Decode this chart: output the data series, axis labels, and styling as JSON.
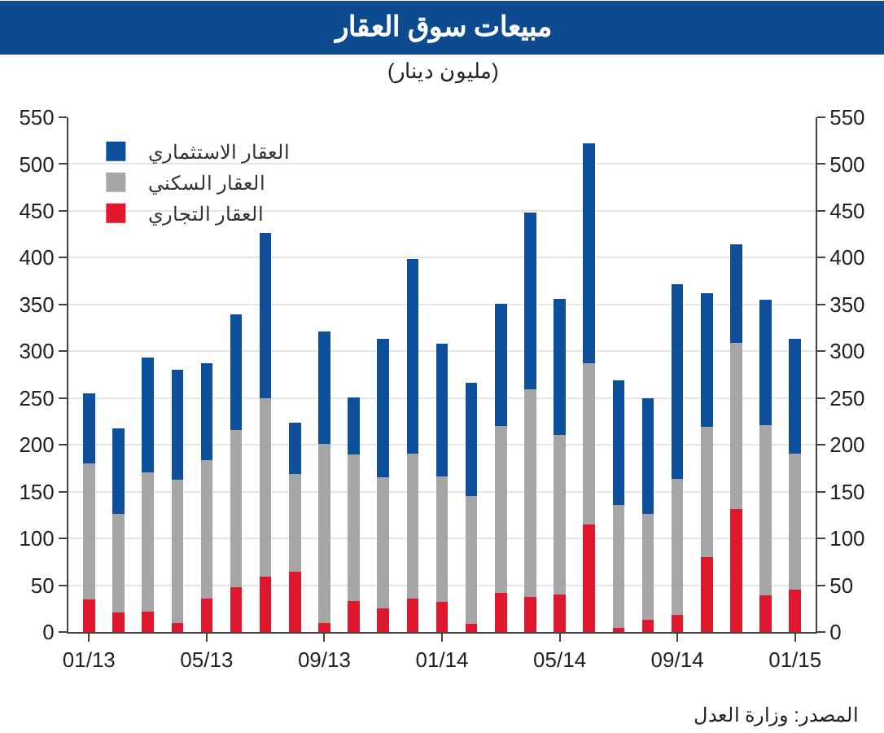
{
  "chart_data": {
    "type": "bar",
    "title": "مبيعات سوق العقار",
    "subtitle": "(مليون دينار)",
    "categories": [
      "01/13",
      null,
      null,
      null,
      "05/13",
      null,
      null,
      null,
      "09/13",
      null,
      null,
      null,
      "01/14",
      null,
      null,
      null,
      "05/14",
      null,
      null,
      null,
      "09/14",
      null,
      null,
      null,
      "01/15"
    ],
    "stacked": true,
    "series": [
      {
        "name": "العقار التجاري",
        "color": "#e0182d",
        "values": [
          35,
          21,
          22,
          10,
          36,
          48,
          59,
          64,
          10,
          33,
          25,
          36,
          32,
          9,
          42,
          37,
          40,
          115,
          4,
          13,
          18,
          80,
          131,
          39,
          45
        ]
      },
      {
        "name": "العقار السكني",
        "color": "#a6a6a6",
        "values": [
          145,
          105,
          149,
          153,
          148,
          168,
          191,
          105,
          191,
          157,
          140,
          155,
          134,
          136,
          178,
          222,
          171,
          172,
          132,
          113,
          146,
          139,
          178,
          182,
          146
        ]
      },
      {
        "name": "العقار الاستثماري",
        "color": "#0d4f9a",
        "values": [
          75,
          92,
          122,
          117,
          103,
          123,
          176,
          55,
          120,
          61,
          148,
          208,
          142,
          121,
          131,
          189,
          145,
          235,
          133,
          124,
          208,
          143,
          105,
          134,
          122
        ]
      }
    ],
    "ylim": [
      0,
      550
    ],
    "yticks": [
      0,
      50,
      100,
      150,
      200,
      250,
      300,
      350,
      400,
      450,
      500,
      550
    ],
    "y2lim": [
      0,
      550
    ],
    "y2ticks": [
      0,
      50,
      100,
      150,
      200,
      250,
      300,
      350,
      400,
      450,
      500,
      550
    ],
    "grid": "y",
    "legend": "top left",
    "annotations": [
      "المصدر: وزارة العدل"
    ]
  }
}
